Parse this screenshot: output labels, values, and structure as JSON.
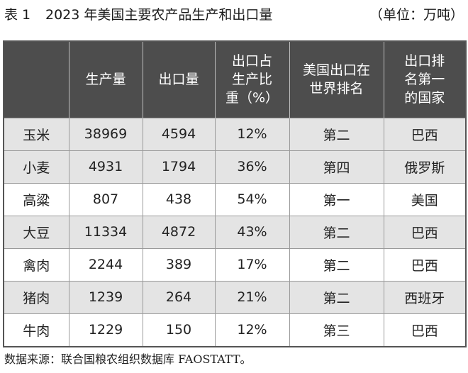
{
  "caption": {
    "label": "表 1",
    "title": "2023 年美国主要农产品生产和出口量",
    "unit": "（单位：万吨）"
  },
  "table": {
    "headers": [
      [],
      [
        "生产量"
      ],
      [
        "出口量"
      ],
      [
        "出口占",
        "生产比",
        "重（%）"
      ],
      [
        "美国出口在",
        "世界排名"
      ],
      [
        "出口排",
        "名第一",
        "的国家"
      ]
    ],
    "rows": [
      [
        "玉米",
        "38969",
        "4594",
        "12%",
        "第二",
        "巴西"
      ],
      [
        "小麦",
        "4931",
        "1794",
        "36%",
        "第四",
        "俄罗斯"
      ],
      [
        "高粱",
        "807",
        "438",
        "54%",
        "第一",
        "美国"
      ],
      [
        "大豆",
        "11334",
        "4872",
        "43%",
        "第二",
        "巴西"
      ],
      [
        "禽肉",
        "2244",
        "389",
        "17%",
        "第二",
        "巴西"
      ],
      [
        "猪肉",
        "1239",
        "264",
        "21%",
        "第二",
        "西班牙"
      ],
      [
        "牛肉",
        "1229",
        "150",
        "12%",
        "第三",
        "巴西"
      ]
    ]
  },
  "source": "数据来源：联合国粮农组织数据库 FAOSTATT。",
  "colors": {
    "header_bg": "#4d4d4d",
    "header_text": "#ffffff",
    "stripe_bg": "#e4e4e4",
    "row_bg": "#ffffff"
  }
}
